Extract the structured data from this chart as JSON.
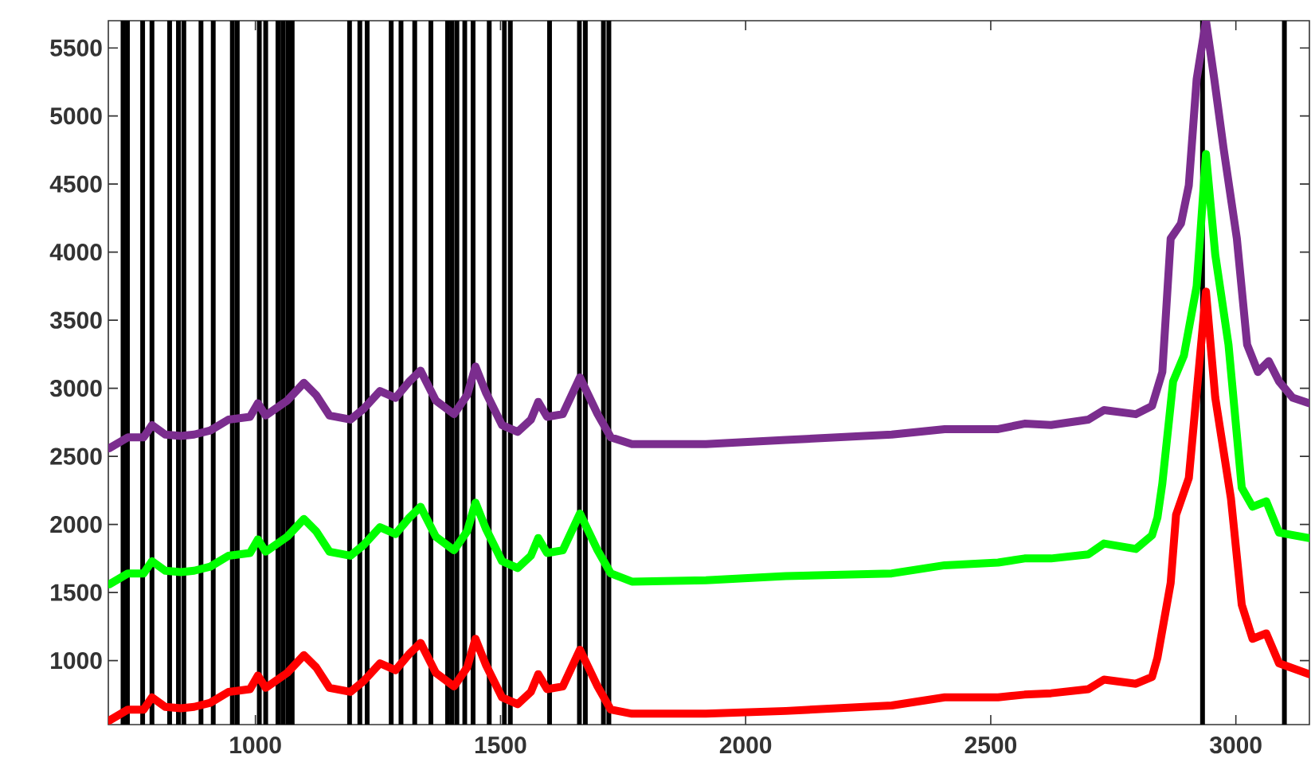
{
  "chart_data": {
    "type": "line",
    "xlim": [
      700,
      3150
    ],
    "ylim": [
      530,
      5700
    ],
    "xticks": [
      1000,
      1500,
      2000,
      2500,
      3000
    ],
    "yticks": [
      1000,
      1500,
      2000,
      2500,
      3000,
      3500,
      4000,
      4500,
      5000,
      5500
    ],
    "grid": false,
    "marker": "none",
    "line_style": "solid",
    "series": [
      {
        "color": "#7b2d8e",
        "x": [
          702,
          740,
          772,
          789,
          816,
          848,
          875,
          908,
          945,
          989,
          1005,
          1021,
          1065,
          1099,
          1124,
          1151,
          1194,
          1221,
          1254,
          1286,
          1314,
          1337,
          1368,
          1405,
          1432,
          1449,
          1470,
          1503,
          1535,
          1562,
          1577,
          1595,
          1627,
          1662,
          1698,
          1725,
          1768,
          1919,
          2082,
          2298,
          2406,
          2515,
          2569,
          2623,
          2699,
          2731,
          2796,
          2829,
          2850,
          2867,
          2888,
          2904,
          2920,
          2939,
          2956,
          2975,
          3002,
          3023,
          3045,
          3067,
          3088,
          3116,
          3150
        ],
        "values": [
          2560,
          2640,
          2640,
          2730,
          2660,
          2650,
          2660,
          2690,
          2770,
          2790,
          2890,
          2800,
          2910,
          3040,
          2950,
          2800,
          2770,
          2850,
          2980,
          2930,
          3050,
          3130,
          2910,
          2810,
          2950,
          3160,
          2970,
          2730,
          2680,
          2770,
          2900,
          2790,
          2810,
          3080,
          2810,
          2640,
          2590,
          2590,
          2620,
          2660,
          2700,
          2700,
          2740,
          2730,
          2770,
          2840,
          2810,
          2870,
          3120,
          4100,
          4210,
          4490,
          5270,
          5700,
          5270,
          4760,
          4100,
          3320,
          3120,
          3200,
          3050,
          2930,
          2890
        ]
      },
      {
        "color": "#00ff00",
        "x": [
          702,
          740,
          772,
          789,
          816,
          848,
          875,
          908,
          945,
          989,
          1005,
          1021,
          1065,
          1099,
          1124,
          1151,
          1194,
          1221,
          1254,
          1286,
          1314,
          1337,
          1368,
          1405,
          1432,
          1449,
          1470,
          1503,
          1535,
          1562,
          1577,
          1595,
          1627,
          1662,
          1698,
          1725,
          1768,
          1919,
          2082,
          2298,
          2406,
          2515,
          2569,
          2623,
          2699,
          2731,
          2796,
          2829,
          2840,
          2850,
          2872,
          2894,
          2920,
          2939,
          2958,
          2985,
          3012,
          3034,
          3062,
          3088,
          3150
        ],
        "values": [
          1560,
          1640,
          1640,
          1730,
          1660,
          1650,
          1660,
          1690,
          1770,
          1790,
          1890,
          1800,
          1910,
          2040,
          1950,
          1800,
          1770,
          1850,
          1980,
          1930,
          2050,
          2130,
          1910,
          1810,
          1950,
          2160,
          1970,
          1730,
          1680,
          1770,
          1900,
          1790,
          1810,
          2080,
          1810,
          1640,
          1580,
          1590,
          1620,
          1640,
          1700,
          1720,
          1750,
          1750,
          1780,
          1860,
          1820,
          1920,
          2050,
          2300,
          3050,
          3240,
          3750,
          4720,
          3980,
          3320,
          2270,
          2130,
          2170,
          1940,
          1900
        ]
      },
      {
        "color": "#ff0000",
        "x": [
          702,
          740,
          772,
          789,
          816,
          848,
          875,
          908,
          945,
          989,
          1005,
          1021,
          1065,
          1099,
          1124,
          1151,
          1194,
          1221,
          1254,
          1286,
          1314,
          1337,
          1368,
          1405,
          1432,
          1449,
          1470,
          1503,
          1535,
          1562,
          1577,
          1595,
          1627,
          1662,
          1698,
          1725,
          1768,
          1919,
          2082,
          2298,
          2406,
          2515,
          2569,
          2623,
          2699,
          2731,
          2796,
          2829,
          2840,
          2867,
          2878,
          2904,
          2939,
          2958,
          2990,
          3012,
          3034,
          3062,
          3088,
          3150
        ],
        "values": [
          560,
          640,
          640,
          730,
          660,
          650,
          660,
          690,
          770,
          790,
          890,
          800,
          910,
          1040,
          950,
          800,
          770,
          850,
          980,
          930,
          1050,
          1130,
          910,
          810,
          950,
          1160,
          970,
          730,
          680,
          770,
          900,
          790,
          810,
          1080,
          810,
          640,
          610,
          610,
          630,
          670,
          730,
          730,
          750,
          760,
          790,
          860,
          830,
          880,
          1020,
          1570,
          2070,
          2340,
          3710,
          2930,
          2190,
          1410,
          1160,
          1200,
          980,
          900
        ]
      }
    ],
    "ref_lines": [
      {
        "axis": "x",
        "value": 730,
        "color": "#000000"
      },
      {
        "axis": "x",
        "value": 739,
        "color": "#000000"
      },
      {
        "axis": "x",
        "value": 770,
        "color": "#000000"
      },
      {
        "axis": "x",
        "value": 789,
        "color": "#000000"
      },
      {
        "axis": "x",
        "value": 825,
        "color": "#000000"
      },
      {
        "axis": "x",
        "value": 843,
        "color": "#000000"
      },
      {
        "axis": "x",
        "value": 854,
        "color": "#000000"
      },
      {
        "axis": "x",
        "value": 889,
        "color": "#000000"
      },
      {
        "axis": "x",
        "value": 914,
        "color": "#000000"
      },
      {
        "axis": "x",
        "value": 953,
        "color": "#000000"
      },
      {
        "axis": "x",
        "value": 963,
        "color": "#000000"
      },
      {
        "axis": "x",
        "value": 1008,
        "color": "#000000"
      },
      {
        "axis": "x",
        "value": 1021,
        "color": "#000000"
      },
      {
        "axis": "x",
        "value": 1046,
        "color": "#000000"
      },
      {
        "axis": "x",
        "value": 1056,
        "color": "#000000"
      },
      {
        "axis": "x",
        "value": 1066,
        "color": "#000000"
      },
      {
        "axis": "x",
        "value": 1075,
        "color": "#000000"
      },
      {
        "axis": "x",
        "value": 1192,
        "color": "#000000"
      },
      {
        "axis": "x",
        "value": 1213,
        "color": "#000000"
      },
      {
        "axis": "x",
        "value": 1228,
        "color": "#000000"
      },
      {
        "axis": "x",
        "value": 1277,
        "color": "#000000"
      },
      {
        "axis": "x",
        "value": 1297,
        "color": "#000000"
      },
      {
        "axis": "x",
        "value": 1325,
        "color": "#000000"
      },
      {
        "axis": "x",
        "value": 1358,
        "color": "#000000"
      },
      {
        "axis": "x",
        "value": 1392,
        "color": "#000000"
      },
      {
        "axis": "x",
        "value": 1401,
        "color": "#000000"
      },
      {
        "axis": "x",
        "value": 1411,
        "color": "#000000"
      },
      {
        "axis": "x",
        "value": 1427,
        "color": "#000000"
      },
      {
        "axis": "x",
        "value": 1444,
        "color": "#000000"
      },
      {
        "axis": "x",
        "value": 1477,
        "color": "#000000"
      },
      {
        "axis": "x",
        "value": 1508,
        "color": "#000000"
      },
      {
        "axis": "x",
        "value": 1520,
        "color": "#000000"
      },
      {
        "axis": "x",
        "value": 1600,
        "color": "#000000"
      },
      {
        "axis": "x",
        "value": 1661,
        "color": "#000000"
      },
      {
        "axis": "x",
        "value": 1673,
        "color": "#000000"
      },
      {
        "axis": "x",
        "value": 1710,
        "color": "#000000"
      },
      {
        "axis": "x",
        "value": 1721,
        "color": "#000000"
      },
      {
        "axis": "x",
        "value": 2932,
        "color": "#000000"
      },
      {
        "axis": "x",
        "value": 3099,
        "color": "#000000"
      }
    ]
  }
}
